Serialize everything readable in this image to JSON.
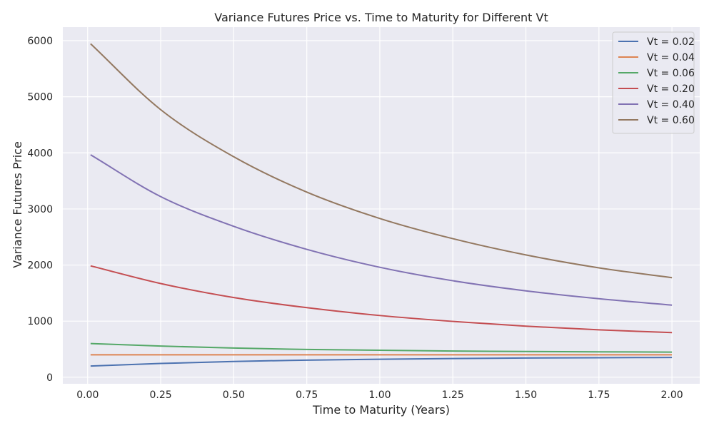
{
  "chart_data": {
    "type": "line",
    "title": "Variance Futures Price vs. Time to Maturity for Different Vt",
    "xlabel": "Time to Maturity (Years)",
    "ylabel": "Variance Futures Price",
    "xlim": [
      -0.085,
      2.095
    ],
    "ylim": [
      -117,
      6242
    ],
    "xticks": [
      0.0,
      0.25,
      0.5,
      0.75,
      1.0,
      1.25,
      1.5,
      1.75,
      2.0
    ],
    "xtick_labels": [
      "0.00",
      "0.25",
      "0.50",
      "0.75",
      "1.00",
      "1.25",
      "1.50",
      "1.75",
      "2.00"
    ],
    "yticks": [
      0,
      1000,
      2000,
      3000,
      4000,
      5000,
      6000
    ],
    "ytick_labels": [
      "0",
      "1000",
      "2000",
      "3000",
      "4000",
      "5000",
      "6000"
    ],
    "grid": true,
    "legend_position": "top-right",
    "x": [
      0.01,
      0.25,
      0.5,
      0.75,
      1.0,
      1.25,
      1.5,
      1.75,
      2.0
    ],
    "series": [
      {
        "name": "Vt = 0.02",
        "color": "#4c72b0",
        "values": [
          200,
          245,
          280,
          305,
          320,
          333,
          342,
          348,
          352
        ]
      },
      {
        "name": "Vt = 0.04",
        "color": "#dd8452",
        "values": [
          400,
          400,
          400,
          400,
          400,
          400,
          400,
          400,
          400
        ]
      },
      {
        "name": "Vt = 0.06",
        "color": "#55a868",
        "values": [
          600,
          555,
          520,
          495,
          480,
          467,
          458,
          452,
          448
        ]
      },
      {
        "name": "Vt = 0.20",
        "color": "#c44e52",
        "values": [
          1985,
          1670,
          1420,
          1240,
          1100,
          995,
          910,
          845,
          795
        ]
      },
      {
        "name": "Vt = 0.40",
        "color": "#8172b3",
        "values": [
          3965,
          3220,
          2690,
          2280,
          1960,
          1720,
          1540,
          1400,
          1285
        ]
      },
      {
        "name": "Vt = 0.60",
        "color": "#937860",
        "values": [
          5945,
          4770,
          3930,
          3300,
          2830,
          2470,
          2180,
          1950,
          1775
        ]
      }
    ]
  }
}
